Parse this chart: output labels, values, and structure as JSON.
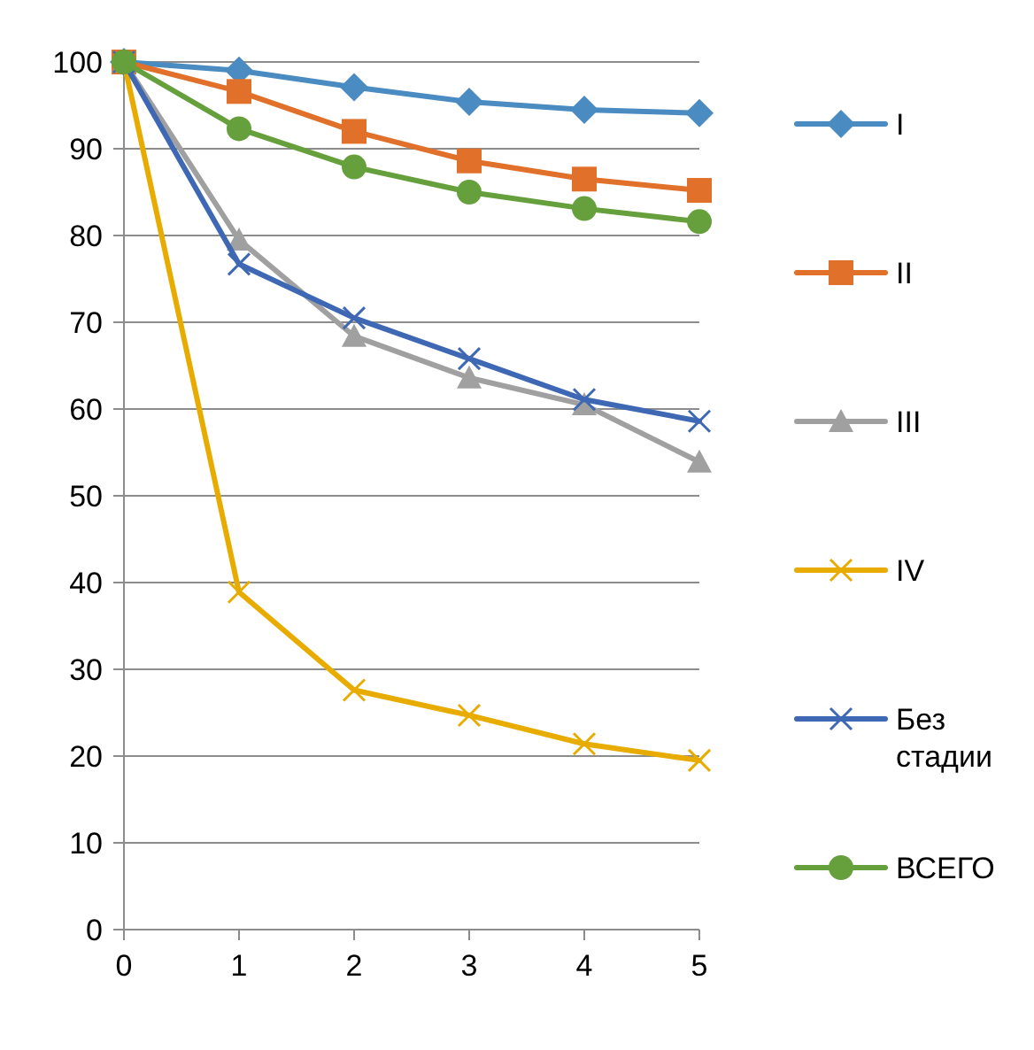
{
  "chart_data": {
    "type": "line",
    "x": [
      0,
      1,
      2,
      3,
      4,
      5
    ],
    "xlim": [
      0,
      5
    ],
    "xticks": [
      0,
      1,
      2,
      3,
      4,
      5
    ],
    "ylim": [
      0,
      100
    ],
    "yticks": [
      0,
      10,
      20,
      30,
      40,
      50,
      60,
      70,
      80,
      90,
      100
    ],
    "grid": "y",
    "legend": "right",
    "series": [
      {
        "name": "I",
        "color": "#4a8bc2",
        "marker": "diamond",
        "values": [
          100,
          99.0,
          97.1,
          95.4,
          94.5,
          94.1
        ]
      },
      {
        "name": "II",
        "color": "#e0702a",
        "marker": "square",
        "values": [
          100,
          96.6,
          92.0,
          88.6,
          86.5,
          85.2
        ]
      },
      {
        "name": "III",
        "color": "#a0a0a0",
        "marker": "triangle",
        "values": [
          100,
          79.5,
          68.4,
          63.6,
          60.5,
          53.9
        ]
      },
      {
        "name": "IV",
        "color": "#e8ac00",
        "marker": "cross",
        "values": [
          100,
          38.9,
          27.6,
          24.7,
          21.4,
          19.5
        ]
      },
      {
        "name": "Без стадии",
        "color": "#3e68b4",
        "marker": "cross",
        "values": [
          100,
          76.7,
          70.5,
          65.8,
          61.1,
          58.6
        ]
      },
      {
        "name": "ВСЕГО",
        "color": "#66a03c",
        "marker": "circle",
        "values": [
          100,
          92.3,
          87.9,
          85.0,
          83.1,
          81.6
        ]
      }
    ]
  }
}
